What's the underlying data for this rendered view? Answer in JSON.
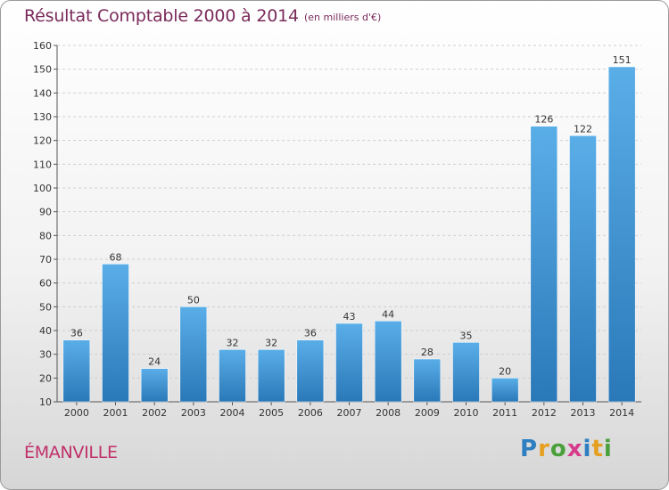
{
  "header": {
    "title": "Résultat Comptable 2000 à 2014",
    "subtitle": "(en milliers d'€)"
  },
  "footer": {
    "city": "ÉMANVILLE"
  },
  "logo": {
    "letters": [
      "P",
      "r",
      "o",
      "x",
      "i",
      "t",
      "i"
    ],
    "colors": [
      "#2d7fc1",
      "#e5a020",
      "#4aa03a",
      "#d83a8c",
      "#2d7fc1",
      "#e5a020",
      "#4aa03a"
    ]
  },
  "chart_data": {
    "type": "bar",
    "categories": [
      "2000",
      "2001",
      "2002",
      "2003",
      "2004",
      "2005",
      "2006",
      "2007",
      "2008",
      "2009",
      "2010",
      "2011",
      "2012",
      "2013",
      "2014"
    ],
    "values": [
      36,
      68,
      24,
      50,
      32,
      32,
      36,
      43,
      44,
      28,
      35,
      20,
      126,
      122,
      151
    ],
    "title": "Résultat Comptable 2000 à 2014",
    "xlabel": "",
    "ylabel": "",
    "ylim": [
      10,
      160
    ],
    "yticks": [
      10,
      20,
      30,
      40,
      50,
      60,
      70,
      80,
      90,
      100,
      110,
      120,
      130,
      140,
      150,
      160
    ],
    "grid": true,
    "bar_color_top": "#5aaee8",
    "bar_color_bottom": "#2a78b8"
  }
}
